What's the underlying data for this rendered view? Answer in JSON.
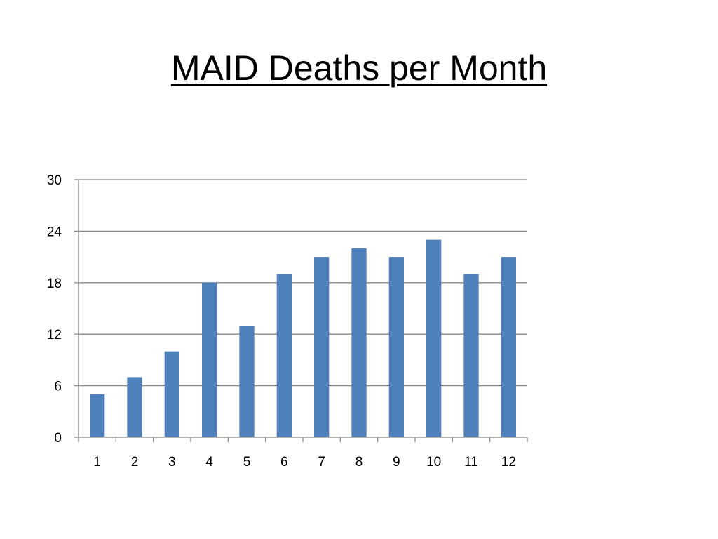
{
  "slide": {
    "title": "MAID Deaths per Month"
  },
  "chart_data": {
    "type": "bar",
    "title": "MAID Deaths per Month",
    "xlabel": "",
    "ylabel": "",
    "categories": [
      "1",
      "2",
      "3",
      "4",
      "5",
      "6",
      "7",
      "8",
      "9",
      "10",
      "11",
      "12"
    ],
    "values": [
      5,
      7,
      10,
      18,
      13,
      19,
      21,
      22,
      21,
      23,
      19,
      21
    ],
    "ylim": [
      0,
      30
    ],
    "yticks": [
      "0",
      "6",
      "12",
      "18",
      "24",
      "30"
    ],
    "grid": true,
    "legend": "none",
    "bar_color": "#4f81bd",
    "grid_color": "#888888"
  }
}
